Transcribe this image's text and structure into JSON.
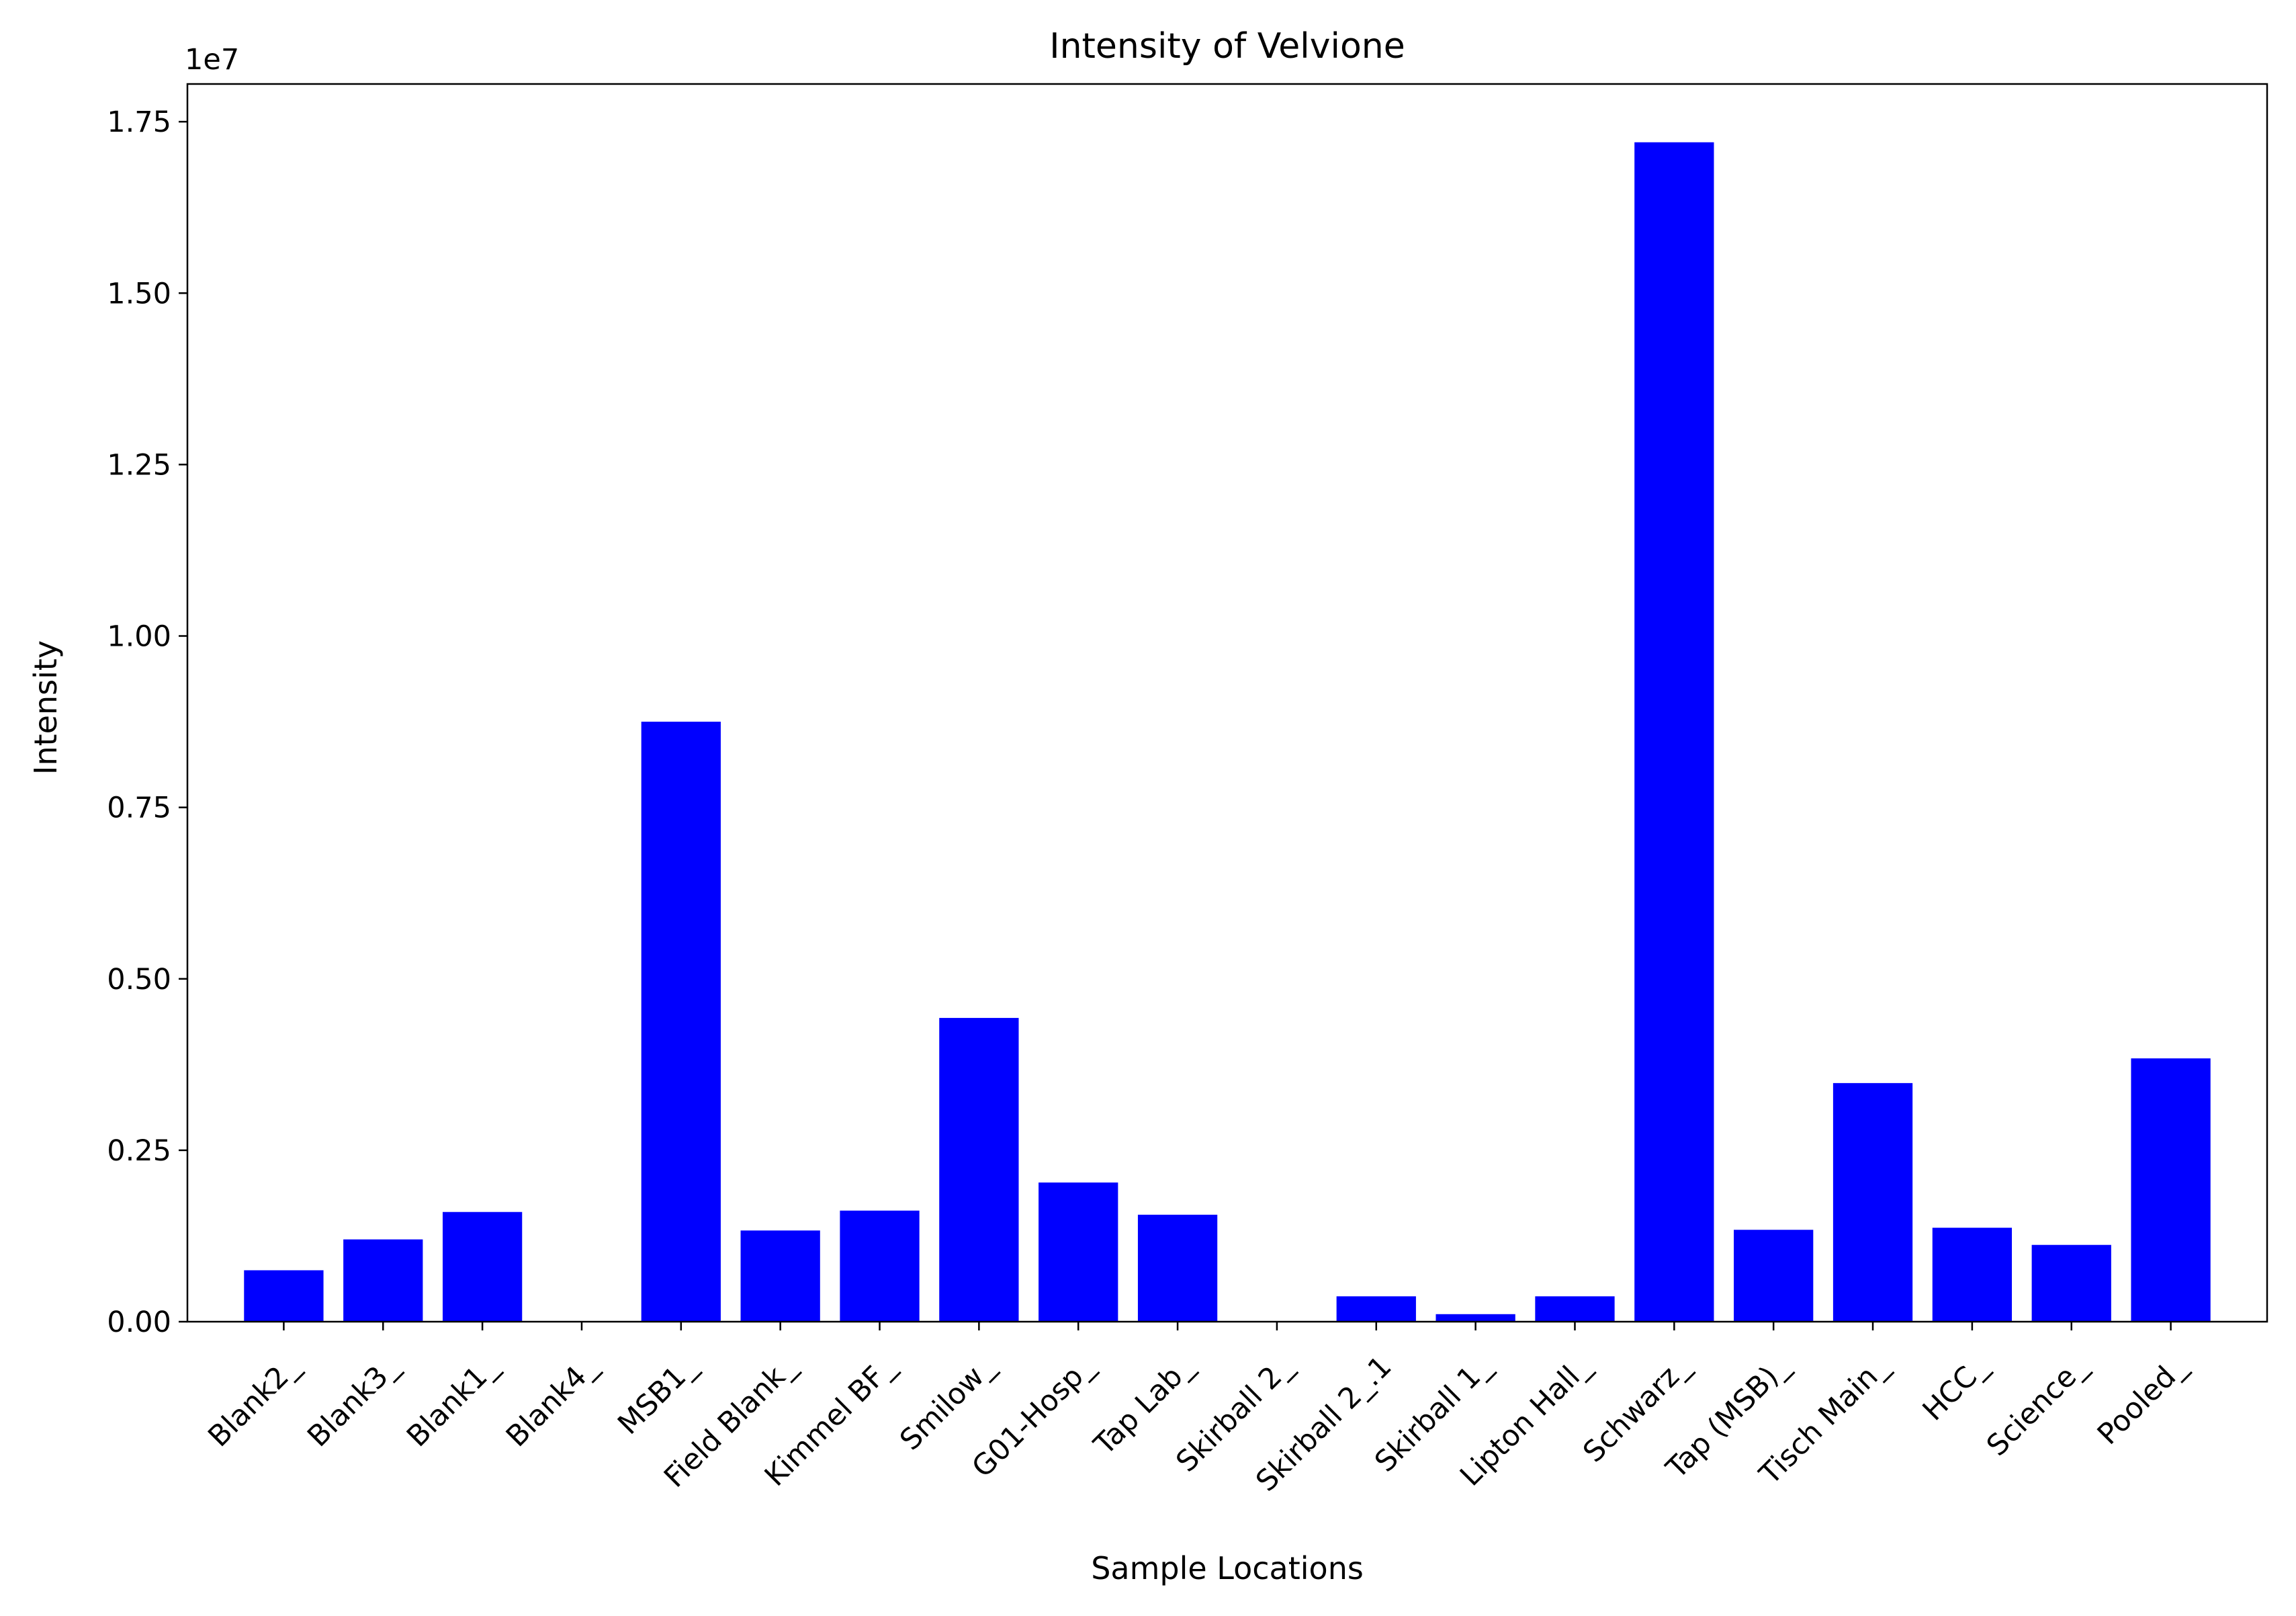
{
  "chart_data": {
    "type": "bar",
    "title": "Intensity of Velvione",
    "xlabel": "Sample Locations",
    "ylabel": "Intensity",
    "y_offset_label": "1e7",
    "ylim": [
      0,
      18050000
    ],
    "yticks": [
      0,
      2500000,
      5000000,
      7500000,
      10000000,
      12500000,
      15000000,
      17500000
    ],
    "ytick_labels": [
      "0.00",
      "0.25",
      "0.50",
      "0.75",
      "1.00",
      "1.25",
      "1.50",
      "1.75"
    ],
    "grid": false,
    "legend": "none",
    "bar_color": "#0000ff",
    "categories": [
      "Blank2_",
      "Blank3_",
      "Blank1_",
      "Blank4_",
      "MSB1_",
      "Field Blank_",
      "Kimmel BF_",
      "Smilow_",
      "G01-Hosp_",
      "Tap Lab_",
      "Skirball 2_",
      "Skirball 2_.1",
      "Skirball 1_",
      "Lipton Hall_",
      "Schwarz_",
      "Tap (MSB)_",
      "Tisch Main_",
      "HCC_",
      "Science_",
      "Pooled_"
    ],
    "values": [
      750000,
      1200000,
      1600000,
      0,
      8750000,
      1330000,
      1620000,
      4430000,
      2030000,
      1560000,
      0,
      370000,
      110000,
      370000,
      17200000,
      1340000,
      3480000,
      1370000,
      1120000,
      3840000
    ]
  }
}
